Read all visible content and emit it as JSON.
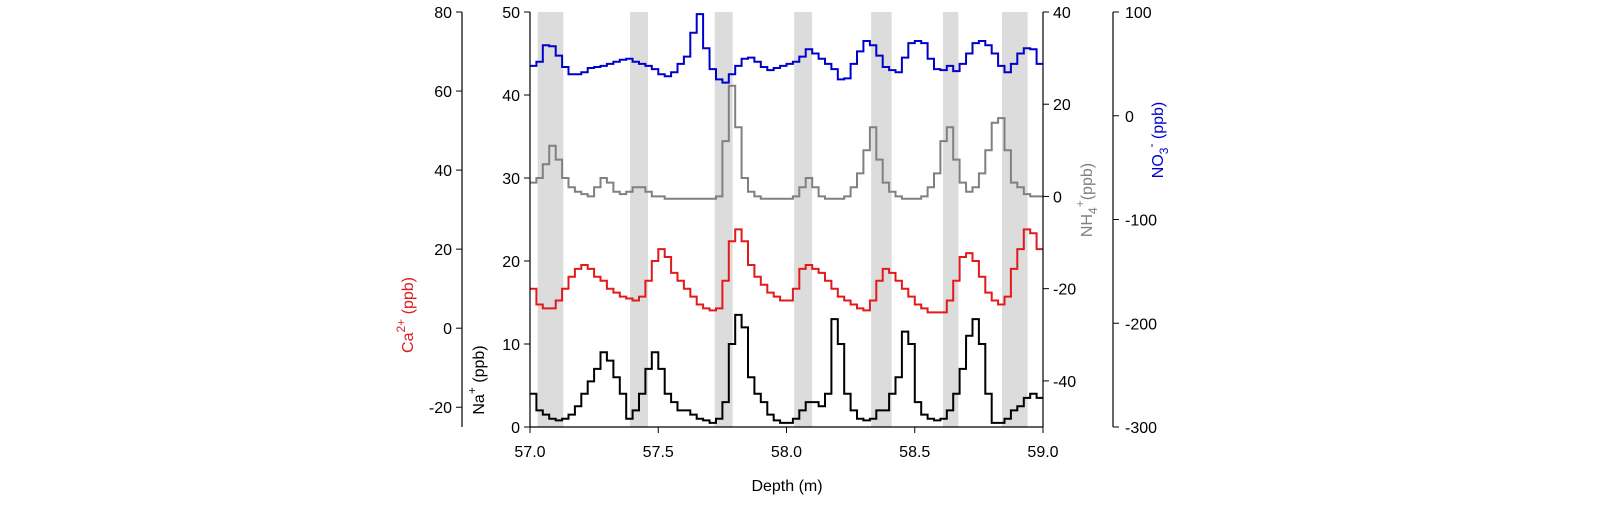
{
  "chart_data": {
    "type": "line",
    "title": "",
    "xlabel": "Depth (m)",
    "xlim": [
      57.0,
      59.0
    ],
    "xticks": [
      "57.0",
      "57.5",
      "58.0",
      "58.5",
      "59.0"
    ],
    "grid": false,
    "legend": "none",
    "highlight_bands": [
      [
        57.03,
        57.13
      ],
      [
        57.39,
        57.46
      ],
      [
        57.72,
        57.79
      ],
      [
        58.03,
        58.1
      ],
      [
        58.33,
        58.41
      ],
      [
        58.61,
        58.67
      ],
      [
        58.84,
        58.94
      ]
    ],
    "highlight_color": "#dcdcdc",
    "axes": [
      {
        "id": "na",
        "label_main": "Na",
        "label_sup": "+",
        "label_sub": "",
        "label_tail": " (ppb)",
        "color": "#000000",
        "ylim": [
          0,
          50
        ],
        "ticks": [
          "0",
          "10",
          "20",
          "30",
          "40",
          "50"
        ]
      },
      {
        "id": "ca",
        "label_main": "Ca",
        "label_sup": "2+",
        "label_sub": "",
        "label_tail": " (ppb)",
        "color": "#e31a1c",
        "ylim": [
          -25,
          80
        ],
        "ticks": [
          "-20",
          "0",
          "20",
          "40",
          "60",
          "80"
        ]
      },
      {
        "id": "nh4",
        "label_main": "NH",
        "label_sub": "4",
        "label_sup": "+",
        "label_tail": "(ppb)",
        "color": "#808080",
        "ylim": [
          -50,
          40
        ],
        "ticks": [
          "-40",
          "-20",
          "0",
          "20",
          "40"
        ]
      },
      {
        "id": "no3",
        "label_main": "NO",
        "label_sub": "3",
        "label_sup": "-",
        "label_tail": " (ppb)",
        "color": "#0000cc",
        "ylim": [
          -300,
          100
        ],
        "ticks": [
          "-300",
          "-200",
          "-100",
          "0",
          "100"
        ]
      }
    ],
    "series": [
      {
        "name": "Na+",
        "axis": "na",
        "color": "#000000",
        "step": true,
        "x": [
          57.0,
          57.025,
          57.05,
          57.075,
          57.1,
          57.125,
          57.15,
          57.175,
          57.2,
          57.225,
          57.25,
          57.275,
          57.3,
          57.325,
          57.35,
          57.375,
          57.4,
          57.425,
          57.45,
          57.475,
          57.5,
          57.525,
          57.55,
          57.575,
          57.6,
          57.625,
          57.65,
          57.675,
          57.7,
          57.725,
          57.75,
          57.775,
          57.8,
          57.825,
          57.85,
          57.875,
          57.9,
          57.925,
          57.95,
          57.975,
          58.0,
          58.025,
          58.05,
          58.075,
          58.1,
          58.125,
          58.15,
          58.175,
          58.2,
          58.225,
          58.25,
          58.275,
          58.3,
          58.325,
          58.35,
          58.375,
          58.4,
          58.425,
          58.45,
          58.475,
          58.5,
          58.525,
          58.55,
          58.575,
          58.6,
          58.625,
          58.65,
          58.675,
          58.7,
          58.725,
          58.75,
          58.775,
          58.8,
          58.825,
          58.85,
          58.875,
          58.9,
          58.925,
          58.95,
          58.975
        ],
        "values": [
          4,
          2,
          1.5,
          1,
          0.8,
          1,
          1.5,
          2.5,
          4,
          5.5,
          7,
          9,
          8,
          6,
          4,
          1,
          2,
          4,
          7,
          9,
          7,
          4,
          3,
          2,
          2,
          1.5,
          1,
          0.8,
          0.5,
          1,
          3,
          10,
          13.5,
          12,
          6,
          4,
          3,
          1.5,
          0.8,
          0.5,
          0.5,
          1,
          2,
          3,
          3,
          2.5,
          4,
          13,
          10,
          4,
          2,
          1,
          0.8,
          1,
          2,
          2,
          4,
          6,
          11.5,
          10,
          3,
          1.5,
          1,
          0.8,
          1,
          2,
          4,
          7,
          11,
          13,
          10,
          4,
          0.5,
          0.5,
          1,
          2,
          2.5,
          3.5,
          4,
          3.5
        ]
      },
      {
        "name": "Ca2+",
        "axis": "ca",
        "color": "#e31a1c",
        "step": true,
        "x": [
          57.0,
          57.025,
          57.05,
          57.075,
          57.1,
          57.125,
          57.15,
          57.175,
          57.2,
          57.225,
          57.25,
          57.275,
          57.3,
          57.325,
          57.35,
          57.375,
          57.4,
          57.425,
          57.45,
          57.475,
          57.5,
          57.525,
          57.55,
          57.575,
          57.6,
          57.625,
          57.65,
          57.675,
          57.7,
          57.725,
          57.75,
          57.775,
          57.8,
          57.825,
          57.85,
          57.875,
          57.9,
          57.925,
          57.95,
          57.975,
          58.0,
          58.025,
          58.05,
          58.075,
          58.1,
          58.125,
          58.15,
          58.175,
          58.2,
          58.225,
          58.25,
          58.275,
          58.3,
          58.325,
          58.35,
          58.375,
          58.4,
          58.425,
          58.45,
          58.475,
          58.5,
          58.525,
          58.55,
          58.575,
          58.6,
          58.625,
          58.65,
          58.675,
          58.7,
          58.725,
          58.75,
          58.775,
          58.8,
          58.825,
          58.85,
          58.875,
          58.9,
          58.925,
          58.95,
          58.975
        ],
        "values": [
          10,
          6,
          5,
          5,
          7,
          10,
          13,
          15,
          16,
          15,
          13,
          12,
          10,
          9,
          8,
          7.5,
          7,
          8,
          12,
          17,
          20,
          18,
          14,
          12,
          10,
          8,
          6,
          5,
          4.5,
          5,
          12,
          22,
          25,
          22,
          16,
          13,
          11,
          9,
          8,
          7,
          7,
          10,
          15,
          16,
          15,
          14,
          12,
          10,
          8,
          7,
          6,
          5,
          4.5,
          7,
          12,
          15,
          14,
          12,
          10,
          8,
          6,
          5,
          4,
          4,
          4,
          7,
          12,
          18,
          19,
          17,
          13,
          9,
          7,
          6,
          8,
          15,
          20,
          25,
          24,
          20
        ]
      },
      {
        "name": "NH4+",
        "axis": "nh4",
        "color": "#808080",
        "step": true,
        "x": [
          57.0,
          57.025,
          57.05,
          57.075,
          57.1,
          57.125,
          57.15,
          57.175,
          57.2,
          57.225,
          57.25,
          57.275,
          57.3,
          57.325,
          57.35,
          57.375,
          57.4,
          57.425,
          57.45,
          57.475,
          57.5,
          57.525,
          57.55,
          57.575,
          57.6,
          57.625,
          57.65,
          57.675,
          57.7,
          57.725,
          57.75,
          57.775,
          57.8,
          57.825,
          57.85,
          57.875,
          57.9,
          57.925,
          57.95,
          57.975,
          58.0,
          58.025,
          58.05,
          58.075,
          58.1,
          58.125,
          58.15,
          58.175,
          58.2,
          58.225,
          58.25,
          58.275,
          58.3,
          58.325,
          58.35,
          58.375,
          58.4,
          58.425,
          58.45,
          58.475,
          58.5,
          58.525,
          58.55,
          58.575,
          58.6,
          58.625,
          58.65,
          58.675,
          58.7,
          58.725,
          58.75,
          58.775,
          58.8,
          58.825,
          58.85,
          58.875,
          58.9,
          58.925,
          58.95,
          58.975
        ],
        "values": [
          3,
          4,
          7,
          11,
          8,
          4,
          2,
          1,
          0.5,
          0,
          2,
          4,
          3,
          1,
          0.5,
          1,
          2,
          2,
          1,
          0,
          0,
          -0.5,
          -0.5,
          -0.5,
          -0.5,
          -0.5,
          -0.5,
          -0.5,
          -0.5,
          0,
          12,
          24,
          15,
          4,
          1,
          0,
          -0.5,
          -0.5,
          -0.5,
          -0.5,
          -0.5,
          0,
          2,
          4,
          2,
          0,
          -0.5,
          -0.5,
          -0.5,
          0,
          2,
          5,
          10,
          15,
          8,
          3,
          1,
          0,
          -0.5,
          -0.5,
          -0.5,
          0,
          2,
          5,
          12,
          15,
          8,
          3,
          1,
          2,
          5,
          10,
          16,
          17,
          10,
          3,
          2,
          0.5,
          0,
          0
        ]
      },
      {
        "name": "NO3-",
        "axis": "no3",
        "color": "#0000cc",
        "step": true,
        "x": [
          57.0,
          57.025,
          57.05,
          57.075,
          57.1,
          57.125,
          57.15,
          57.175,
          57.2,
          57.225,
          57.25,
          57.275,
          57.3,
          57.325,
          57.35,
          57.375,
          57.4,
          57.425,
          57.45,
          57.475,
          57.5,
          57.525,
          57.55,
          57.575,
          57.6,
          57.625,
          57.65,
          57.675,
          57.7,
          57.725,
          57.75,
          57.775,
          57.8,
          57.825,
          57.85,
          57.875,
          57.9,
          57.925,
          57.95,
          57.975,
          58.0,
          58.025,
          58.05,
          58.075,
          58.1,
          58.125,
          58.15,
          58.175,
          58.2,
          58.225,
          58.25,
          58.275,
          58.3,
          58.325,
          58.35,
          58.375,
          58.4,
          58.425,
          58.45,
          58.475,
          58.5,
          58.525,
          58.55,
          58.575,
          58.6,
          58.625,
          58.65,
          58.675,
          58.7,
          58.725,
          58.75,
          58.775,
          58.8,
          58.825,
          58.85,
          58.875,
          58.9,
          58.925,
          58.95,
          58.975
        ],
        "values": [
          48,
          52,
          68,
          67,
          58,
          47,
          40,
          40,
          42,
          46,
          47,
          48,
          50,
          52,
          54,
          55,
          52,
          50,
          48,
          45,
          40,
          38,
          42,
          50,
          57,
          80,
          98,
          65,
          45,
          35,
          32,
          40,
          48,
          55,
          56,
          52,
          47,
          44,
          46,
          48,
          50,
          52,
          57,
          64,
          60,
          55,
          50,
          45,
          35,
          36,
          50,
          62,
          72,
          68,
          58,
          47,
          44,
          42,
          56,
          70,
          72,
          70,
          55,
          45,
          44,
          48,
          43,
          50,
          60,
          70,
          72,
          68,
          60,
          48,
          42,
          50,
          60,
          65,
          64,
          50
        ]
      }
    ]
  }
}
